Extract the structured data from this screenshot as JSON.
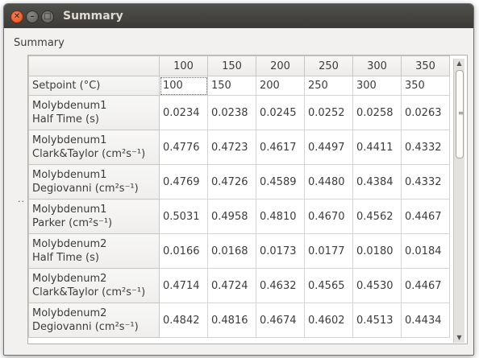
{
  "window": {
    "title": "Summary"
  },
  "section_label": "Summary",
  "dots": "..",
  "table": {
    "columns": [
      "100",
      "150",
      "200",
      "250",
      "300",
      "350"
    ],
    "rows": [
      {
        "label": [
          "Setpoint (°C)"
        ],
        "cells": [
          "100",
          "150",
          "200",
          "250",
          "300",
          "350"
        ]
      },
      {
        "label": [
          "Molybdenum1",
          "Half Time (s)"
        ],
        "cells": [
          "0.0234",
          "0.0238",
          "0.0245",
          "0.0252",
          "0.0258",
          "0.0263"
        ]
      },
      {
        "label": [
          "Molybdenum1",
          "Clark&Taylor (cm²s⁻¹)"
        ],
        "cells": [
          "0.4776",
          "0.4723",
          "0.4617",
          "0.4497",
          "0.4411",
          "0.4332"
        ]
      },
      {
        "label": [
          "Molybdenum1",
          "Degiovanni (cm²s⁻¹)"
        ],
        "cells": [
          "0.4769",
          "0.4726",
          "0.4589",
          "0.4480",
          "0.4384",
          "0.4332"
        ]
      },
      {
        "label": [
          "Molybdenum1",
          "Parker (cm²s⁻¹)"
        ],
        "cells": [
          "0.5031",
          "0.4958",
          "0.4810",
          "0.4670",
          "0.4562",
          "0.4467"
        ]
      },
      {
        "label": [
          "Molybdenum2",
          "Half Time (s)"
        ],
        "cells": [
          "0.0166",
          "0.0168",
          "0.0173",
          "0.0177",
          "0.0180",
          "0.0184"
        ]
      },
      {
        "label": [
          "Molybdenum2",
          "Clark&Taylor (cm²s⁻¹)"
        ],
        "cells": [
          "0.4714",
          "0.4724",
          "0.4632",
          "0.4565",
          "0.4530",
          "0.4467"
        ]
      },
      {
        "label": [
          "Molybdenum2",
          "Degiovanni (cm²s⁻¹)"
        ],
        "cells": [
          "0.4842",
          "0.4816",
          "0.4674",
          "0.4602",
          "0.4513",
          "0.4434"
        ]
      }
    ]
  },
  "icons": {
    "close": "close-icon",
    "minimize": "minimize-icon",
    "maximize": "maximize-icon"
  }
}
